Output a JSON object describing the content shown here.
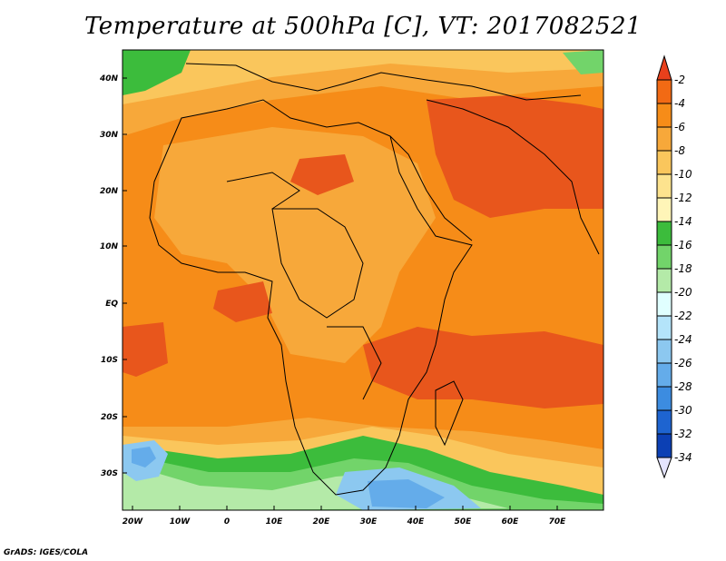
{
  "title": "Temperature at 500hPa [C], VT: 2017082521",
  "credit": "GrADS: IGES/COLA",
  "axes": {
    "lat_ticks": [
      "40N",
      "30N",
      "20N",
      "10N",
      "EQ",
      "10S",
      "20S",
      "30S"
    ],
    "lon_ticks": [
      "20W",
      "10W",
      "0",
      "10E",
      "20E",
      "30E",
      "40E",
      "50E",
      "60E",
      "70E"
    ]
  },
  "colorbar": {
    "labels": [
      "-2",
      "-4",
      "-6",
      "-8",
      "-10",
      "-12",
      "-14",
      "-16",
      "-18",
      "-20",
      "-22",
      "-24",
      "-26",
      "-28",
      "-30",
      "-32",
      "-34"
    ],
    "colors": [
      "#e8401c",
      "#f26a14",
      "#f68c18",
      "#f7a83a",
      "#fac65c",
      "#fde38e",
      "#fff5b8",
      "#3cbc3c",
      "#72d46a",
      "#b4eaa8",
      "#e0ffff",
      "#b4e4fa",
      "#8cc8f0",
      "#64acea",
      "#3c8ce0",
      "#1e64d0",
      "#0c40b4",
      "#08147a"
    ]
  },
  "map_colors": {
    "ocean_warm": "#f68c18",
    "hot": "#e8561c",
    "land_mid": "#f7a83a",
    "cool_north": "#fac65c",
    "pale": "#fde38e",
    "green": "#3cbc3c",
    "light_green": "#b4eaa8",
    "blue": "#8cc8f0"
  }
}
